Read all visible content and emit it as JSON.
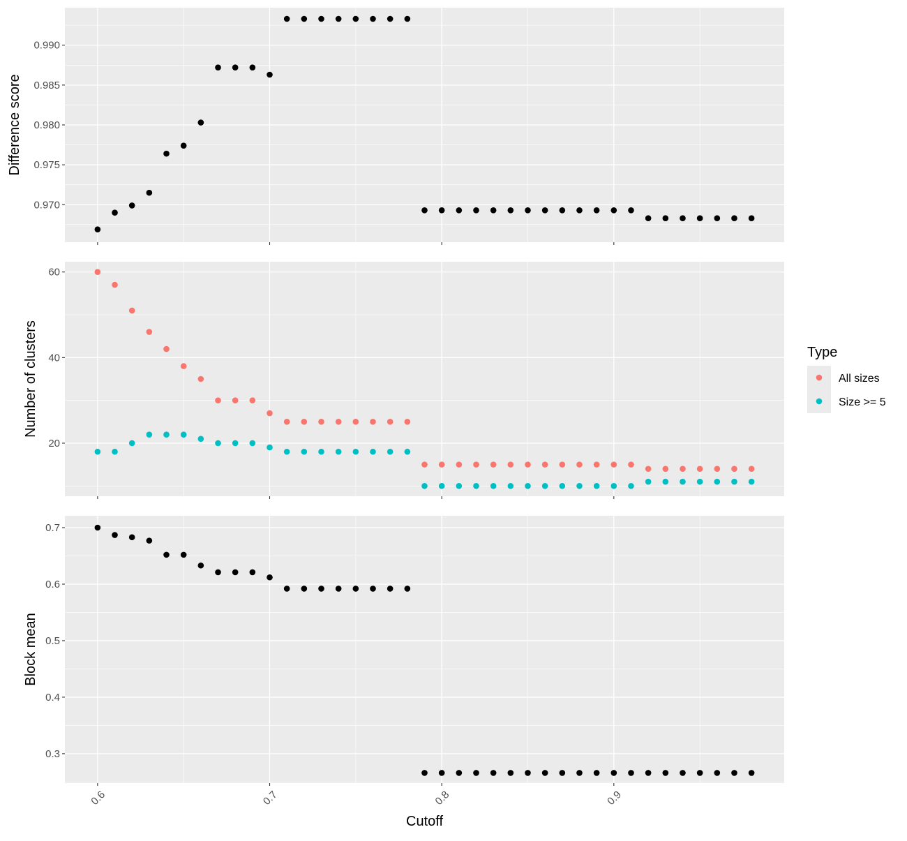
{
  "chart_data": {
    "type": "scatter",
    "x_label": "Cutoff",
    "x_ticks": [
      0.6,
      0.7,
      0.8,
      0.9
    ],
    "xlim": [
      0.581,
      0.999
    ],
    "x": [
      0.6,
      0.61,
      0.62,
      0.63,
      0.64,
      0.65,
      0.66,
      0.67,
      0.68,
      0.69,
      0.7,
      0.71,
      0.72,
      0.73,
      0.74,
      0.75,
      0.76,
      0.77,
      0.78,
      0.79,
      0.8,
      0.81,
      0.82,
      0.83,
      0.84,
      0.85,
      0.86,
      0.87,
      0.88,
      0.89,
      0.9,
      0.91,
      0.92,
      0.93,
      0.94,
      0.95,
      0.96,
      0.97,
      0.98
    ],
    "panels": [
      {
        "id": "difference",
        "ylabel": "Difference score",
        "ylim": [
          0.9653,
          0.9947
        ],
        "y_ticks": [
          0.97,
          0.975,
          0.98,
          0.985,
          0.99
        ],
        "y_tick_labels": [
          "0.970",
          "0.975",
          "0.980",
          "0.985",
          "0.990"
        ],
        "series": [
          {
            "color": "#000000",
            "values": [
              0.9669,
              0.969,
              0.9699,
              0.9715,
              0.9764,
              0.9774,
              0.9803,
              0.9872,
              0.9872,
              0.9872,
              0.9863,
              0.9933,
              0.9933,
              0.9933,
              0.9933,
              0.9933,
              0.9933,
              0.9933,
              0.9933,
              0.9693,
              0.9693,
              0.9693,
              0.9693,
              0.9693,
              0.9693,
              0.9693,
              0.9693,
              0.9693,
              0.9693,
              0.9693,
              0.9693,
              0.9693,
              0.9683,
              0.9683,
              0.9683,
              0.9683,
              0.9683,
              0.9683,
              0.9683
            ]
          }
        ]
      },
      {
        "id": "clusters",
        "ylabel": "Number of clusters",
        "ylim": [
          7.6,
          62.4
        ],
        "y_ticks": [
          20,
          40,
          60
        ],
        "y_tick_labels": [
          "20",
          "40",
          "60"
        ],
        "series": [
          {
            "name": "All sizes",
            "color": "#F8766D",
            "values": [
              60,
              57,
              51,
              46,
              42,
              38,
              35,
              30,
              30,
              30,
              27,
              25,
              25,
              25,
              25,
              25,
              25,
              25,
              25,
              15,
              15,
              15,
              15,
              15,
              15,
              15,
              15,
              15,
              15,
              15,
              15,
              15,
              14,
              14,
              14,
              14,
              14,
              14,
              14
            ]
          },
          {
            "name": "Size >= 5",
            "color": "#00BFC4",
            "values": [
              18,
              18,
              20,
              22,
              22,
              22,
              21,
              20,
              20,
              20,
              19,
              18,
              18,
              18,
              18,
              18,
              18,
              18,
              18,
              10,
              10,
              10,
              10,
              10,
              10,
              10,
              10,
              10,
              10,
              10,
              10,
              10,
              11,
              11,
              11,
              11,
              11,
              11,
              11
            ]
          }
        ]
      },
      {
        "id": "blockmean",
        "ylabel": "Block mean",
        "ylim": [
          0.248,
          0.721
        ],
        "y_ticks": [
          0.3,
          0.4,
          0.5,
          0.6,
          0.7
        ],
        "y_tick_labels": [
          "0.3",
          "0.4",
          "0.5",
          "0.6",
          "0.7"
        ],
        "series": [
          {
            "color": "#000000",
            "values": [
              0.7,
              0.687,
              0.683,
              0.677,
              0.652,
              0.652,
              0.633,
              0.621,
              0.621,
              0.621,
              0.612,
              0.592,
              0.592,
              0.592,
              0.592,
              0.592,
              0.592,
              0.592,
              0.592,
              0.266,
              0.266,
              0.266,
              0.266,
              0.266,
              0.266,
              0.266,
              0.266,
              0.266,
              0.266,
              0.266,
              0.266,
              0.266,
              0.266,
              0.266,
              0.266,
              0.266,
              0.266,
              0.266,
              0.266
            ]
          }
        ]
      }
    ],
    "legend": {
      "title": "Type",
      "position": "right",
      "items": [
        {
          "label": "All sizes",
          "color": "#F8766D"
        },
        {
          "label": "Size >= 5",
          "color": "#00BFC4"
        }
      ]
    },
    "grid": true,
    "background": "#EBEBEB"
  }
}
